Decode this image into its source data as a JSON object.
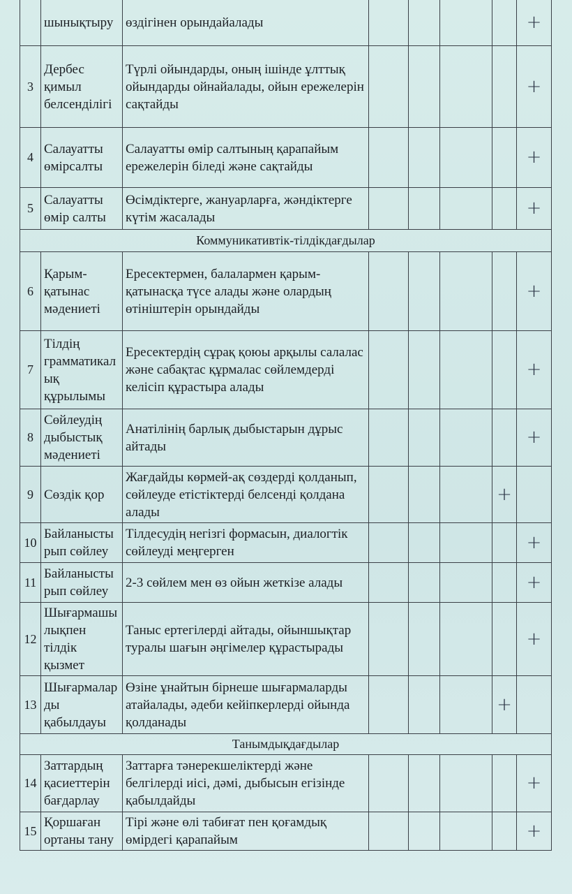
{
  "table": {
    "rows": [
      {
        "number": null,
        "skill": "шынықтыру",
        "description": "өздігінен орындайалады",
        "marks": [
          null,
          null,
          null,
          null,
          "+"
        ]
      },
      {
        "number": "3",
        "skill": "Дербес қимыл белсенділігі",
        "description": "Түрлі ойындарды, оның ішінде ұлттық ойындарды ойнайалады, ойын ережелерін сақтайды",
        "marks": [
          null,
          null,
          null,
          null,
          "+"
        ]
      },
      {
        "number": "4",
        "skill": "Салауатты өмірсалты",
        "description": "Салауатты өмір салтының қарапайым ережелерін біледі және сақтайды",
        "marks": [
          null,
          null,
          null,
          null,
          "+"
        ]
      },
      {
        "number": "5",
        "skill": "Салауатты өмір салты",
        "description": "Өсімдіктерге, жануарларға, жәндіктерге күтім жасалады",
        "marks": [
          null,
          null,
          null,
          null,
          "+"
        ]
      },
      {
        "section": "Коммуникативтік-тілдікдағдылар"
      },
      {
        "number": "6",
        "skill": "Қарым-қатынас мәдениеті",
        "description": "Ересектермен, балалармен қарым-қатынасқа түсе алады және олардың өтініштерін орындайды",
        "marks": [
          null,
          null,
          null,
          null,
          "+"
        ]
      },
      {
        "number": "7",
        "skill": "Тілдің грамматикалық құрылымы",
        "description": "Ересектердің сұрақ қоюы арқылы салалас және сабақтас құрмалас сөйлемдерді келісіп құрастыра алады",
        "marks": [
          null,
          null,
          null,
          null,
          "+"
        ]
      },
      {
        "number": "8",
        "skill": "Сөйлеудің дыбыстық мәдениеті",
        "description": "Анатілінің барлық дыбыстарын дұрыс айтады",
        "marks": [
          null,
          null,
          null,
          null,
          "+"
        ]
      },
      {
        "number": "9",
        "skill": "Сөздік қор",
        "description": "Жағдайды көрмей-ақ сөздерді қолданып, сөйлеуде етістіктерді белсенді қолдана алады",
        "marks": [
          null,
          null,
          null,
          "+",
          null
        ]
      },
      {
        "number": "10",
        "skill": "Байланыстырып сөйлеу",
        "description": "Тілдесудің негізгі формасын, диалогтік сөйлеуді меңгерген",
        "marks": [
          null,
          null,
          null,
          null,
          "+"
        ]
      },
      {
        "number": "11",
        "skill": "Байланыстырып сөйлеу",
        "description": "2-3 сөйлем мен өз ойын жеткізе алады",
        "marks": [
          null,
          null,
          null,
          null,
          "+"
        ]
      },
      {
        "number": "12",
        "skill": "Шығармашылықпен тілдік қызмет",
        "description": "Таныс ертегілерді айтады, ойыншықтар туралы шағын әңгімелер құрастырады",
        "marks": [
          null,
          null,
          null,
          null,
          "+"
        ]
      },
      {
        "number": "13",
        "skill": "Шығармаларды қабылдауы",
        "description": "Өзіне ұнайтын бірнеше шығармаларды атайалады, әдеби кейіпкерлерді ойында қолданады",
        "marks": [
          null,
          null,
          null,
          "+",
          null
        ]
      },
      {
        "section": "Танымдықдағдылар"
      },
      {
        "number": "14",
        "skill": "Заттардың қасиеттерін бағдарлау",
        "description": "Заттарға тәнерекшеліктерді және белгілерді иісі, дәмі, дыбысын егізінде қабылдайды",
        "marks": [
          null,
          null,
          null,
          null,
          "+"
        ]
      },
      {
        "number": "15",
        "skill": "Қоршаған ортаны тану",
        "description": "Тірі және өлі табиғат пен қоғамдық өмірдегі қарапайым",
        "marks": [
          null,
          null,
          null,
          null,
          "+"
        ]
      }
    ]
  }
}
